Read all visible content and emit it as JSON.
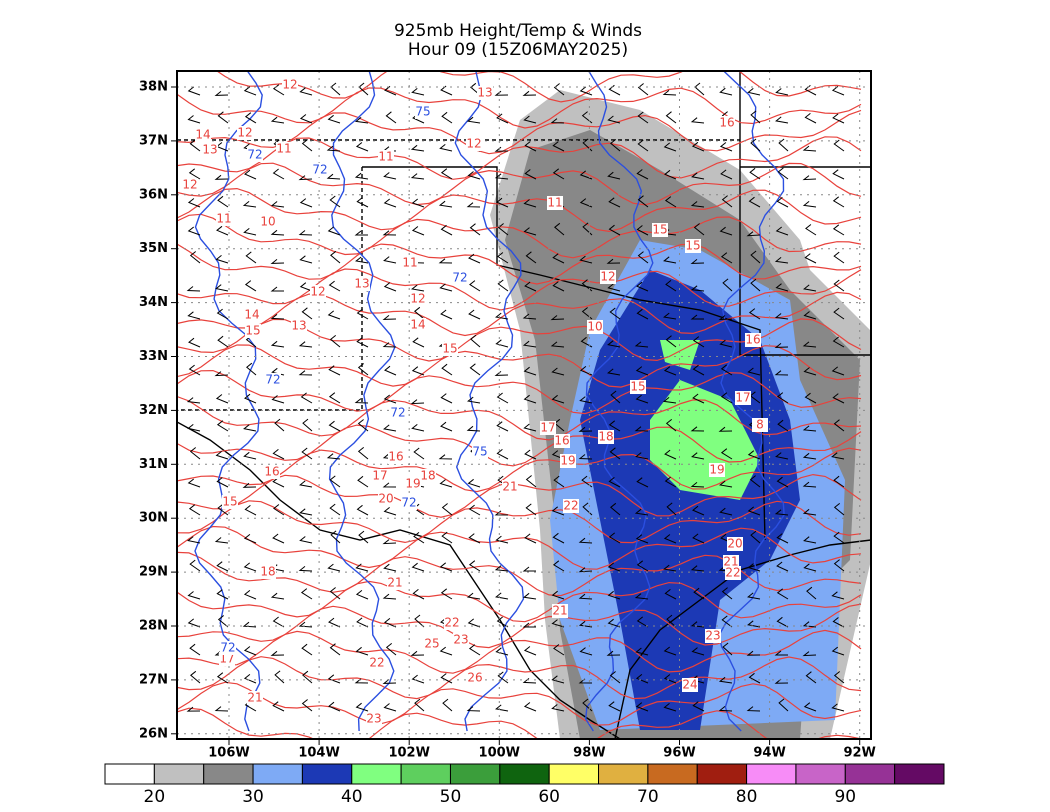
{
  "header": {
    "title": "925mb Height/Temp & Winds",
    "subtitle": "Hour 09 (15Z06MAY2025)"
  },
  "map": {
    "lat_labels": [
      "38N",
      "37N",
      "36N",
      "35N",
      "34N",
      "33N",
      "32N",
      "31N",
      "30N",
      "29N",
      "28N",
      "27N",
      "26N"
    ],
    "lon_labels": [
      "106W",
      "104W",
      "102W",
      "100W",
      "98W",
      "96W",
      "94W",
      "92W"
    ],
    "temp_color": "#e8423c",
    "height_color": "#2b4fe0",
    "temp_labels": [
      "12",
      "13",
      "14",
      "12",
      "13",
      "11",
      "11",
      "12",
      "16",
      "12",
      "11",
      "10",
      "11",
      "15",
      "15",
      "11",
      "12",
      "13",
      "12",
      "12",
      "14",
      "15",
      "13",
      "14",
      "10",
      "16",
      "15",
      "15",
      "17",
      "8",
      "17",
      "16",
      "18",
      "19",
      "16",
      "17",
      "18",
      "19",
      "16",
      "19",
      "21",
      "20",
      "15",
      "22",
      "20",
      "21",
      "22",
      "18",
      "21",
      "21",
      "22",
      "23",
      "23",
      "25",
      "22",
      "17",
      "26",
      "24",
      "21",
      "23"
    ],
    "height_labels": [
      "75",
      "72",
      "72",
      "72",
      "72",
      "72",
      "72",
      "72",
      "75"
    ]
  },
  "colorbar": {
    "colors": [
      "#ffffff",
      "#c0c0c0",
      "#888888",
      "#7eaaf5",
      "#1c39b5",
      "#80ff80",
      "#5ecf5e",
      "#3b9e3b",
      "#0f640f",
      "#ffff66",
      "#e0b040",
      "#c86a20",
      "#a01e10",
      "#f78cf7",
      "#c864c8",
      "#963296",
      "#640a64"
    ],
    "ticks": [
      20,
      30,
      40,
      50,
      60,
      70,
      80,
      90
    ]
  }
}
